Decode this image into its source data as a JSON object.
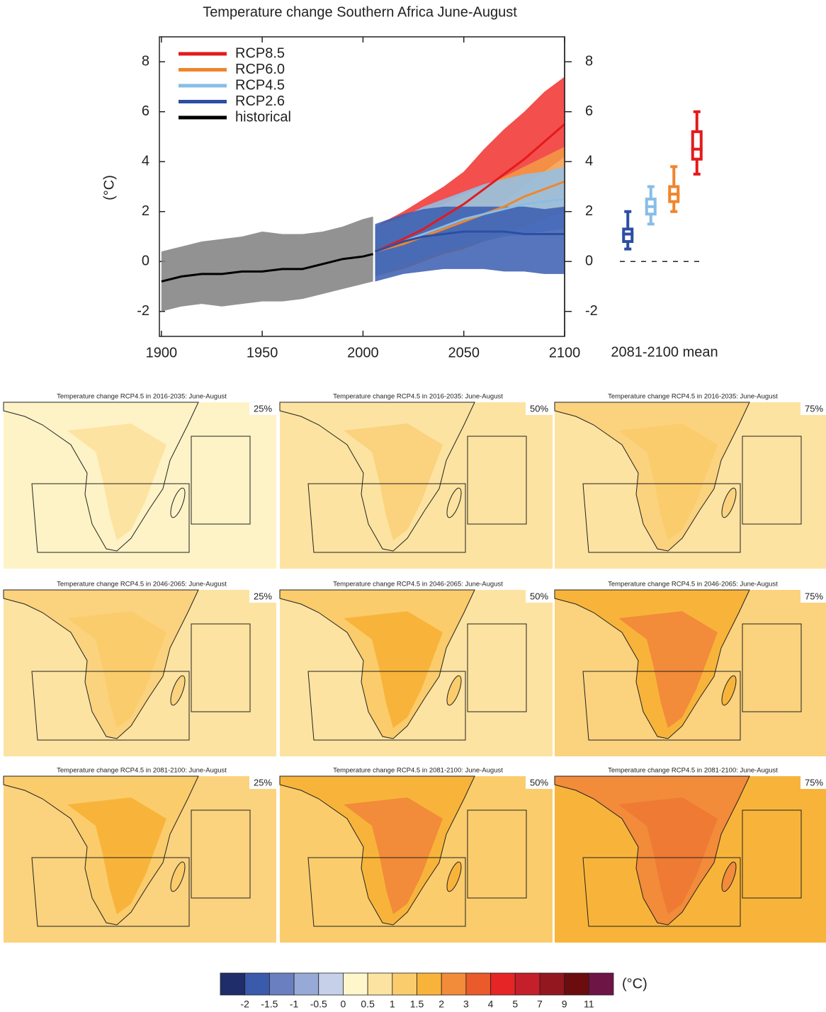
{
  "chart_data": [
    {
      "type": "line",
      "title": "Temperature change Southern Africa June-August",
      "y_label": "(°C)",
      "xlim": [
        1899,
        2100
      ],
      "xticks": [
        1900,
        1950,
        2000,
        2050,
        2100
      ],
      "ylim": [
        -3,
        9
      ],
      "yticks": [
        -2,
        0,
        2,
        4,
        6,
        8
      ],
      "legend": "upper left",
      "series": [
        {
          "name": "RCP8.5",
          "color": "#e41a1c",
          "band_color": "#f0302e",
          "x": [
            2006,
            2020,
            2030,
            2040,
            2050,
            2060,
            2070,
            2080,
            2090,
            2100
          ],
          "values": [
            0.4,
            0.9,
            1.3,
            1.8,
            2.3,
            2.9,
            3.5,
            4.1,
            4.8,
            5.5
          ],
          "lower": [
            -0.6,
            -0.1,
            0.3,
            0.8,
            1.2,
            1.8,
            2.4,
            3.0,
            3.6,
            4.2
          ],
          "upper": [
            1.4,
            2.0,
            2.5,
            3.0,
            3.6,
            4.5,
            5.3,
            6.0,
            6.8,
            7.4
          ]
        },
        {
          "name": "RCP6.0",
          "color": "#f0852d",
          "band_color": "#f59a45",
          "x": [
            2006,
            2020,
            2030,
            2040,
            2050,
            2060,
            2070,
            2080,
            2090,
            2100
          ],
          "values": [
            0.4,
            0.7,
            1.0,
            1.3,
            1.6,
            1.9,
            2.2,
            2.6,
            2.9,
            3.2
          ],
          "lower": [
            -0.6,
            -0.3,
            0.0,
            0.3,
            0.5,
            0.8,
            1.1,
            1.4,
            1.7,
            2.0
          ],
          "upper": [
            1.4,
            1.7,
            2.0,
            2.3,
            2.7,
            3.0,
            3.4,
            3.8,
            4.2,
            4.6
          ]
        },
        {
          "name": "RCP4.5",
          "color": "#88bde6",
          "band_color": "#8fc2ea",
          "x": [
            2006,
            2020,
            2030,
            2040,
            2050,
            2060,
            2070,
            2080,
            2090,
            2100
          ],
          "values": [
            0.4,
            0.8,
            1.1,
            1.4,
            1.7,
            1.9,
            2.1,
            2.3,
            2.4,
            2.5
          ],
          "lower": [
            -0.6,
            -0.2,
            0.1,
            0.4,
            0.6,
            0.8,
            1.0,
            1.1,
            1.2,
            1.3
          ],
          "upper": [
            1.4,
            1.8,
            2.2,
            2.5,
            2.8,
            3.1,
            3.3,
            3.5,
            3.6,
            3.8
          ]
        },
        {
          "name": "RCP2.6",
          "color": "#2c4ea3",
          "band_color": "#3a5db0",
          "x": [
            2006,
            2020,
            2030,
            2040,
            2050,
            2060,
            2070,
            2080,
            2090,
            2100
          ],
          "values": [
            0.4,
            0.8,
            1.0,
            1.1,
            1.2,
            1.2,
            1.2,
            1.1,
            1.1,
            1.1
          ],
          "lower": [
            -0.8,
            -0.5,
            -0.4,
            -0.3,
            -0.3,
            -0.3,
            -0.4,
            -0.4,
            -0.5,
            -0.5
          ],
          "upper": [
            1.5,
            1.9,
            2.1,
            2.2,
            2.2,
            2.2,
            2.2,
            2.2,
            2.1,
            2.2
          ]
        },
        {
          "name": "historical",
          "color": "#000000",
          "band_color": "#7f7f7f",
          "x": [
            1900,
            1910,
            1920,
            1930,
            1940,
            1950,
            1960,
            1970,
            1980,
            1990,
            2000,
            2005
          ],
          "values": [
            -0.8,
            -0.6,
            -0.5,
            -0.5,
            -0.4,
            -0.4,
            -0.3,
            -0.3,
            -0.1,
            0.1,
            0.2,
            0.3
          ],
          "lower": [
            -2.0,
            -1.8,
            -1.7,
            -1.8,
            -1.7,
            -1.6,
            -1.6,
            -1.5,
            -1.3,
            -1.1,
            -0.9,
            -0.8
          ],
          "upper": [
            0.4,
            0.6,
            0.8,
            0.9,
            1.0,
            1.2,
            1.1,
            1.1,
            1.2,
            1.4,
            1.7,
            1.8
          ]
        }
      ]
    },
    {
      "type": "box",
      "x_label": "2081-2100 mean",
      "ylim": [
        -3,
        9
      ],
      "yticks": [
        -2,
        0,
        2,
        4,
        6,
        8
      ],
      "categories": [
        null,
        null,
        null,
        null
      ],
      "hline": 0,
      "boxes": [
        {
          "color": "#2c4ea3",
          "min": 0.5,
          "q1": 0.8,
          "median": 1.1,
          "q3": 1.3,
          "max": 2.0
        },
        {
          "color": "#88bde6",
          "min": 1.5,
          "q1": 1.9,
          "median": 2.2,
          "q3": 2.5,
          "max": 3.0
        },
        {
          "color": "#f0852d",
          "min": 2.0,
          "q1": 2.4,
          "median": 2.7,
          "q3": 3.0,
          "max": 3.8
        },
        {
          "color": "#e41a1c",
          "min": 3.5,
          "q1": 4.1,
          "median": 4.5,
          "q3": 5.2,
          "max": 6.0
        }
      ]
    }
  ],
  "maps": [
    {
      "title": "Temperature change RCP4.5 in 2016-2035: June-August",
      "label": "25%",
      "ocean_color": "#fef3c6",
      "land_color": "#fef3c6",
      "inner_color": "#fde3a1"
    },
    {
      "title": "Temperature change RCP4.5 in 2016-2035: June-August",
      "label": "50%",
      "ocean_color": "#fde3a1",
      "land_color": "#fde3a1",
      "inner_color": "#fbd27d"
    },
    {
      "title": "Temperature change RCP4.5 in 2016-2035: June-August",
      "label": "75%",
      "ocean_color": "#fde3a1",
      "land_color": "#fbd27d",
      "inner_color": "#fbcc6c"
    },
    {
      "title": "Temperature change RCP4.5 in 2046-2065: June-August",
      "label": "25%",
      "ocean_color": "#fde3a1",
      "land_color": "#fbd27d",
      "inner_color": "#fbcc6c"
    },
    {
      "title": "Temperature change RCP4.5 in 2046-2065: June-August",
      "label": "50%",
      "ocean_color": "#fde3a1",
      "land_color": "#fbcc6c",
      "inner_color": "#f8b43a"
    },
    {
      "title": "Temperature change RCP4.5 in 2046-2065: June-August",
      "label": "75%",
      "ocean_color": "#fbd27d",
      "land_color": "#f8b43a",
      "inner_color": "#f28b3a"
    },
    {
      "title": "Temperature change RCP4.5 in 2081-2100: June-August",
      "label": "25%",
      "ocean_color": "#fbd27d",
      "land_color": "#fbcc6c",
      "inner_color": "#f8b43a"
    },
    {
      "title": "Temperature change RCP4.5 in 2081-2100: June-August",
      "label": "50%",
      "ocean_color": "#fbcc6c",
      "land_color": "#f8b43a",
      "inner_color": "#f28b3a"
    },
    {
      "title": "Temperature change RCP4.5 in 2081-2100: June-August",
      "label": "75%",
      "ocean_color": "#f8b43a",
      "land_color": "#f28b3a",
      "inner_color": "#ee7a34"
    }
  ],
  "colorbar": {
    "colors": [
      "#1f2d6b",
      "#3a5aab",
      "#6a7fbf",
      "#97a9d6",
      "#c6d0e8",
      "#fff6cc",
      "#fde3a1",
      "#fbcc6c",
      "#f8b43a",
      "#f28b3a",
      "#ea5a2a",
      "#e62626",
      "#c41f2a",
      "#92171f",
      "#6b0c0f",
      "#6d1545"
    ],
    "ticks": [
      -2,
      -1.5,
      -1,
      -0.5,
      0,
      0.5,
      1,
      1.5,
      2,
      3,
      4,
      5,
      7,
      9,
      11
    ],
    "unit": "(°C)"
  }
}
